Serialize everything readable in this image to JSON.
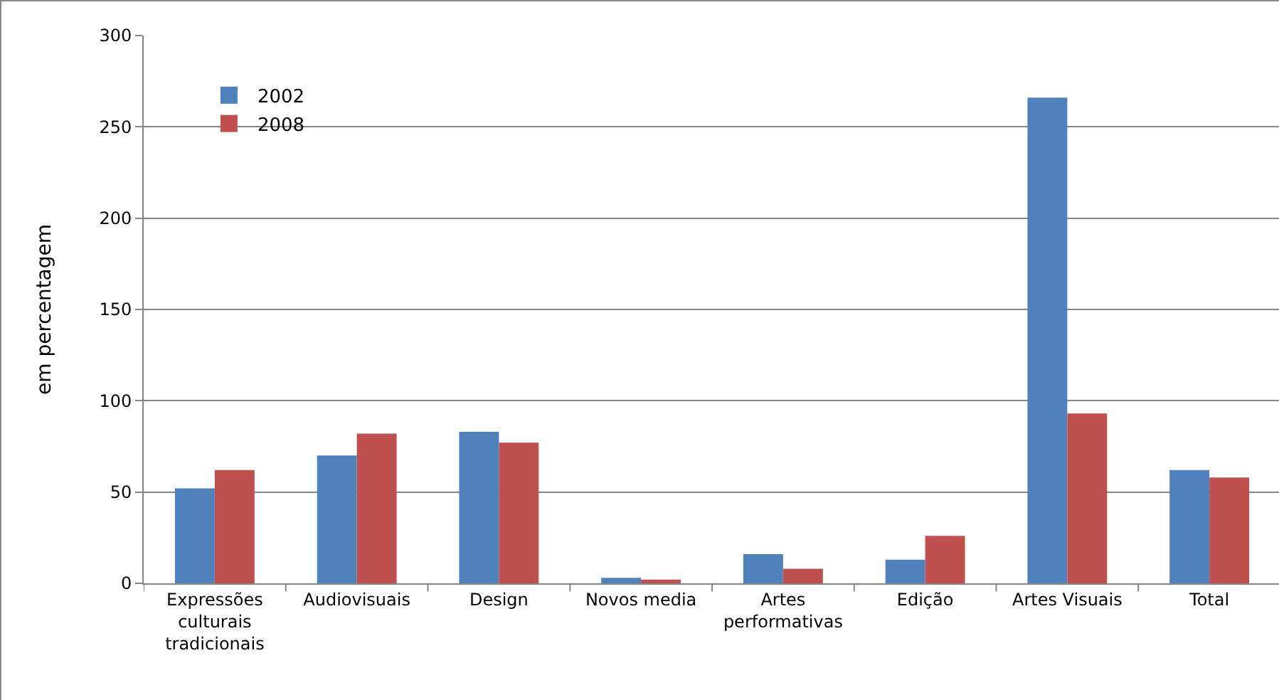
{
  "chart_data": {
    "type": "bar",
    "ylabel": "em percentagem",
    "categories": [
      "Expressões culturais tradicionais",
      "Audiovisuais",
      "Design",
      "Novos media",
      "Artes performativas",
      "Edição",
      "Artes Visuais",
      "Total"
    ],
    "series": [
      {
        "name": "2002",
        "color": "#4f81bd",
        "values": [
          52,
          70,
          83,
          3,
          16,
          13,
          266,
          62
        ]
      },
      {
        "name": "2008",
        "color": "#c0504d",
        "values": [
          62,
          82,
          77,
          2,
          8,
          26,
          93,
          58
        ]
      }
    ],
    "ylim": [
      0,
      300
    ],
    "yticks": [
      0,
      50,
      100,
      150,
      200,
      250,
      300
    ],
    "grid": "y",
    "legend": "top left"
  }
}
